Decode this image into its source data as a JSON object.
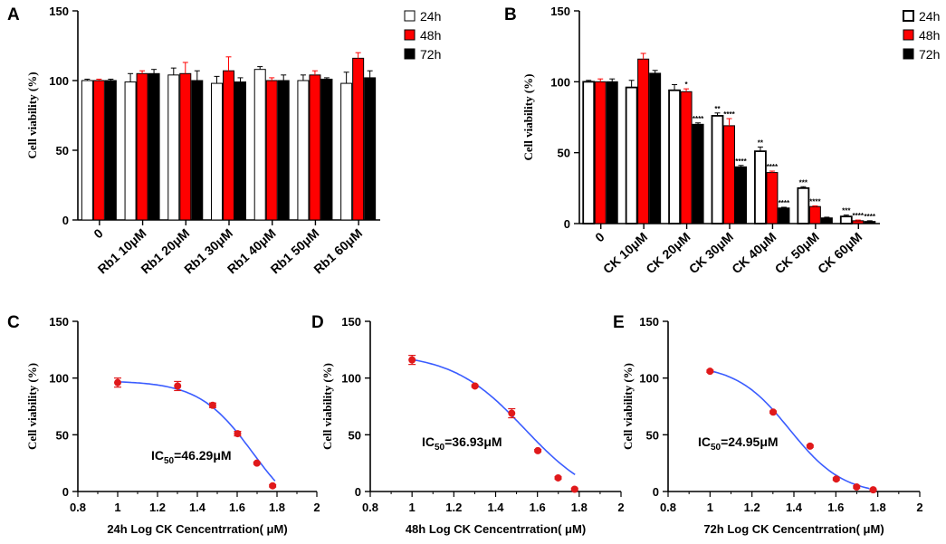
{
  "chart_data": [
    {
      "panel": "A",
      "type": "bar",
      "ylabel": "Cell viability (%)",
      "xlabel": "",
      "ylim": [
        0,
        150
      ],
      "yticks": [
        0,
        50,
        100,
        150
      ],
      "categories": [
        "0",
        "Rb1 10μM",
        "Rb1 20μM",
        "Rb1 30μM",
        "Rb1 40μM",
        "Rb1 50μM",
        "Rb1 60μM"
      ],
      "legend": {
        "position": "top-right",
        "entries": [
          "24h",
          "48h",
          "72h"
        ]
      },
      "series": [
        {
          "name": "24h",
          "color": "#ffffff",
          "values": [
            100,
            99,
            104,
            98,
            108,
            100,
            98
          ],
          "errors": [
            1,
            6,
            5,
            5,
            2,
            4,
            8
          ]
        },
        {
          "name": "48h",
          "color": "#ff0000",
          "values": [
            100,
            105,
            105,
            107,
            100,
            104,
            116
          ],
          "errors": [
            1,
            2,
            8,
            10,
            2,
            3,
            4
          ]
        },
        {
          "name": "72h",
          "color": "#000000",
          "values": [
            100,
            105,
            100,
            99,
            100,
            101,
            102
          ],
          "errors": [
            1,
            3,
            7,
            3,
            4,
            1,
            5
          ]
        }
      ]
    },
    {
      "panel": "B",
      "type": "bar",
      "ylabel": "Cell viability (%)",
      "xlabel": "",
      "ylim": [
        0,
        150
      ],
      "yticks": [
        0,
        50,
        100,
        150
      ],
      "categories": [
        "0",
        "CK 10μM",
        "CK 20μM",
        "CK 30μM",
        "CK 40μM",
        "CK 50μM",
        "CK 60μM"
      ],
      "legend": {
        "position": "top-right",
        "entries": [
          "24h",
          "48h",
          "72h"
        ]
      },
      "series": [
        {
          "name": "24h",
          "color": "#ffffff",
          "values": [
            100,
            96,
            94,
            76,
            51,
            25,
            5
          ],
          "errors": [
            1,
            5,
            4,
            2,
            3,
            1,
            1
          ],
          "annotations": [
            "",
            "",
            "",
            "**",
            "**",
            "***",
            "***"
          ]
        },
        {
          "name": "48h",
          "color": "#ff0000",
          "values": [
            100,
            116,
            93,
            69,
            36,
            12,
            2
          ],
          "errors": [
            2,
            4,
            2,
            5,
            1,
            0.5,
            0.5
          ],
          "annotations": [
            "",
            "",
            "*",
            "****",
            "****",
            "****",
            "****"
          ]
        },
        {
          "name": "72h",
          "color": "#000000",
          "values": [
            100,
            106,
            70,
            40,
            11,
            4,
            1.5
          ],
          "errors": [
            2,
            2,
            1,
            1,
            0.5,
            0.5,
            0.5
          ],
          "annotations": [
            "",
            "",
            "****",
            "****",
            "****",
            "",
            "****"
          ]
        }
      ]
    },
    {
      "panel": "C",
      "type": "scatter",
      "ylabel": "Cell viability (%)",
      "xlabel": "24h Log CK Cencentrration( μM)",
      "xlim": [
        0.8,
        2.0
      ],
      "ylim": [
        0,
        150
      ],
      "xticks": [
        0.8,
        1.0,
        1.2,
        1.4,
        1.6,
        1.8,
        2.0
      ],
      "yticks": [
        0,
        50,
        100,
        150
      ],
      "ic50_prefix": "IC",
      "ic50_sub": "50",
      "ic50_value": "=46.29μM",
      "points": {
        "x": [
          1.0,
          1.301,
          1.477,
          1.602,
          1.699,
          1.778
        ],
        "y": [
          96,
          93,
          76,
          51,
          25,
          5
        ],
        "errors": [
          4,
          4,
          2,
          2,
          1,
          1
        ]
      },
      "fit": {
        "top": 97.5,
        "bottom": -30,
        "logEC50": 1.68,
        "hill": 3.2,
        "xrange": [
          1.0,
          1.79
        ]
      }
    },
    {
      "panel": "D",
      "type": "scatter",
      "ylabel": "Cell viability (%)",
      "xlabel": "48h Log CK Cencentrration( μM)",
      "xlim": [
        0.8,
        2.0
      ],
      "ylim": [
        0,
        150
      ],
      "xticks": [
        0.8,
        1.0,
        1.2,
        1.4,
        1.6,
        1.8,
        2.0
      ],
      "yticks": [
        0,
        50,
        100,
        150
      ],
      "ic50_prefix": "IC",
      "ic50_sub": "50",
      "ic50_value": "=36.93μM",
      "points": {
        "x": [
          1.0,
          1.301,
          1.477,
          1.602,
          1.699,
          1.778
        ],
        "y": [
          116,
          93,
          69,
          36,
          12,
          2
        ],
        "errors": [
          4,
          1,
          4,
          1,
          1,
          1
        ]
      },
      "fit": {
        "top": 122,
        "bottom": -12,
        "logEC50": 1.54,
        "hill": 2.5,
        "xrange": [
          1.0,
          1.78
        ]
      }
    },
    {
      "panel": "E",
      "type": "scatter",
      "ylabel": "Cell viability (%)",
      "xlabel": "72h Log CK Cencentrration( μM)",
      "xlim": [
        0.8,
        2.0
      ],
      "ylim": [
        0,
        150
      ],
      "xticks": [
        0.8,
        1.0,
        1.2,
        1.4,
        1.6,
        1.8,
        2.0
      ],
      "yticks": [
        0,
        50,
        100,
        150
      ],
      "ic50_prefix": "IC",
      "ic50_sub": "50",
      "ic50_value": "=24.95μM",
      "points": {
        "x": [
          1.0,
          1.301,
          1.477,
          1.602,
          1.699,
          1.778
        ],
        "y": [
          106,
          70,
          40,
          11,
          4,
          1.5
        ],
        "errors": [
          1,
          1,
          1,
          1,
          1,
          0.5
        ]
      },
      "fit": {
        "top": 112,
        "bottom": -3,
        "logEC50": 1.38,
        "hill": 3.4,
        "xrange": [
          1.0,
          1.76
        ]
      }
    }
  ],
  "colors": {
    "point": "#e0191b",
    "fit": "#3a5cff",
    "axis": "#000000"
  }
}
